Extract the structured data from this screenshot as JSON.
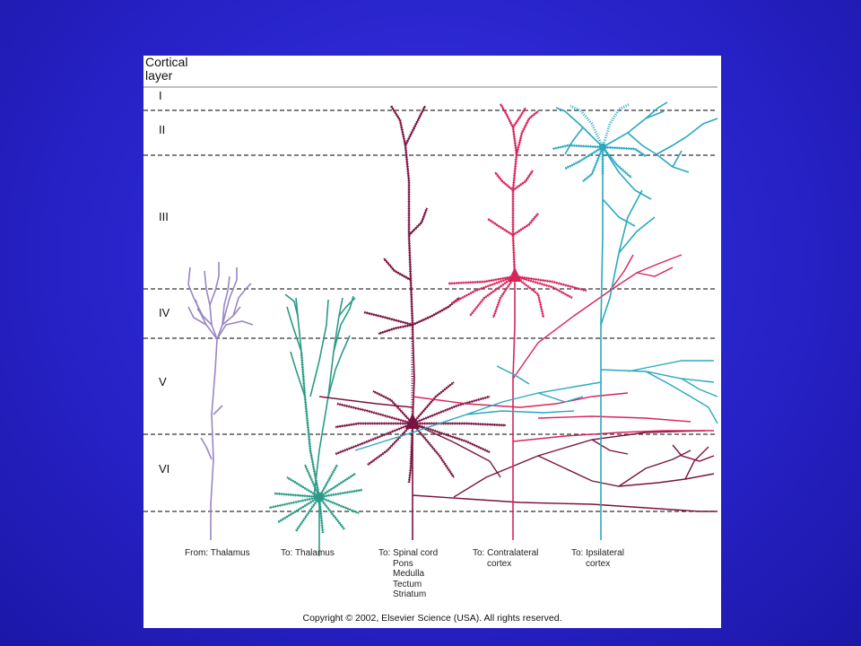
{
  "title": {
    "line1": "Cortical",
    "line2": "layer"
  },
  "layers": [
    "I",
    "II",
    "III",
    "IV",
    "V",
    "VI"
  ],
  "captions": {
    "from_thalamus": [
      "From: Thalamus"
    ],
    "to_thalamus": [
      "To: Thalamus"
    ],
    "to_spinal": [
      "To: Spinal cord",
      "Pons",
      "Medulla",
      "Tectum",
      "Striatum"
    ],
    "to_contralateral": [
      "To: Contralateral",
      "cortex"
    ],
    "to_ipsilateral": [
      "To: Ipsilateral",
      "cortex"
    ]
  },
  "copyright": "Copyright © 2002, Elsevier Science (USA). All rights reserved.",
  "colors": {
    "background": "#2723c9",
    "thalamic_afferent": "#9a86c4",
    "corticothalamic": "#2a9a86",
    "subcortical": "#7a1240",
    "contralateral": "#d8245a",
    "ipsilateral": "#2aa8c0"
  }
}
